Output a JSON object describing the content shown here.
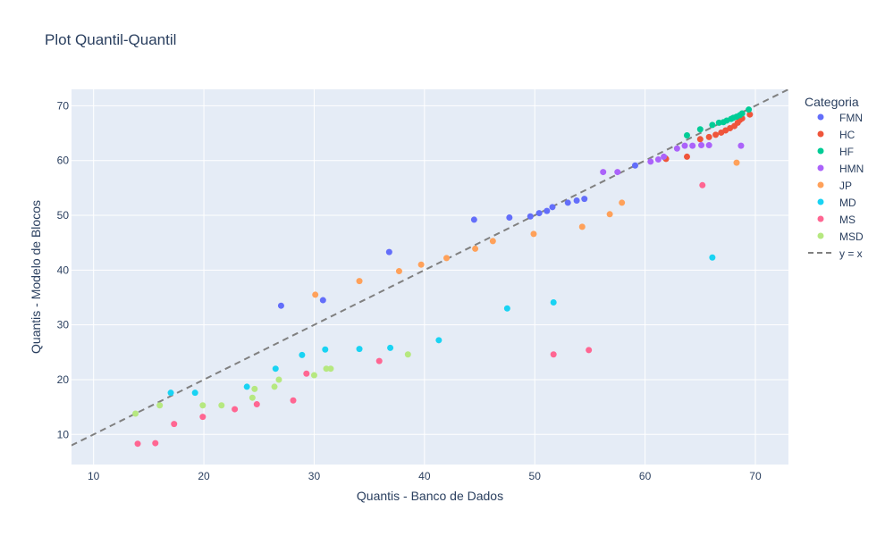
{
  "chart_data": {
    "type": "scatter",
    "title": "Plot Quantil-Quantil",
    "xlabel": "Quantis - Banco de Dados",
    "ylabel": "Quantis - Modelo de Blocos",
    "xlim": [
      8,
      73
    ],
    "ylim": [
      4.5,
      73
    ],
    "xticks": [
      10,
      20,
      30,
      40,
      50,
      60,
      70
    ],
    "yticks": [
      10,
      20,
      30,
      40,
      50,
      60,
      70
    ],
    "grid": true,
    "legend_title": "Categoria",
    "legend_position": "right",
    "plot_bg": "#e5ecf6",
    "reference_line": {
      "name": "y = x",
      "color": "#808080",
      "dash": true
    },
    "series": [
      {
        "name": "FMN",
        "color": "#636efa",
        "points": [
          [
            27,
            33.5
          ],
          [
            30.8,
            34.5
          ],
          [
            36.8,
            43.3
          ],
          [
            44.5,
            49.2
          ],
          [
            47.7,
            49.6
          ],
          [
            49.6,
            49.8
          ],
          [
            50.4,
            50.4
          ],
          [
            51.1,
            50.8
          ],
          [
            51.6,
            51.5
          ],
          [
            53,
            52.3
          ],
          [
            53.8,
            52.7
          ],
          [
            54.5,
            53
          ],
          [
            59.1,
            59.1
          ],
          [
            61.8,
            60.5
          ]
        ]
      },
      {
        "name": "HC",
        "color": "#ef553b",
        "points": [
          [
            61.9,
            60.3
          ],
          [
            63.8,
            60.7
          ],
          [
            65,
            63.9
          ],
          [
            65.8,
            64.3
          ],
          [
            66.4,
            64.7
          ],
          [
            66.9,
            65.1
          ],
          [
            67.3,
            65.5
          ],
          [
            67.7,
            65.9
          ],
          [
            68.1,
            66.3
          ],
          [
            68.4,
            66.9
          ],
          [
            68.6,
            67.4
          ],
          [
            68.8,
            67.7
          ],
          [
            69.5,
            68.4
          ]
        ]
      },
      {
        "name": "HF",
        "color": "#00cc96",
        "points": [
          [
            63.8,
            64.6
          ],
          [
            65,
            65.7
          ],
          [
            66.1,
            66.5
          ],
          [
            66.7,
            66.9
          ],
          [
            67.1,
            67
          ],
          [
            67.4,
            67.3
          ],
          [
            67.8,
            67.6
          ],
          [
            68,
            67.8
          ],
          [
            68.3,
            68
          ],
          [
            68.6,
            68.3
          ],
          [
            68.8,
            68.6
          ],
          [
            69.4,
            69.3
          ]
        ]
      },
      {
        "name": "HMN",
        "color": "#ab63fa",
        "points": [
          [
            56.2,
            57.9
          ],
          [
            57.5,
            57.9
          ],
          [
            60.5,
            59.8
          ],
          [
            61.2,
            60.2
          ],
          [
            61.7,
            60.7
          ],
          [
            62.9,
            62.2
          ],
          [
            63.6,
            62.7
          ],
          [
            64.3,
            62.7
          ],
          [
            65.1,
            62.8
          ],
          [
            65.8,
            62.8
          ],
          [
            68.7,
            62.7
          ]
        ]
      },
      {
        "name": "JP",
        "color": "#ffa15a",
        "points": [
          [
            30.1,
            35.5
          ],
          [
            34.1,
            38
          ],
          [
            37.7,
            39.8
          ],
          [
            39.7,
            41
          ],
          [
            42,
            42.2
          ],
          [
            44.6,
            43.9
          ],
          [
            46.2,
            45.3
          ],
          [
            49.9,
            46.6
          ],
          [
            54.3,
            47.9
          ],
          [
            56.8,
            50.2
          ],
          [
            57.9,
            52.3
          ],
          [
            68.3,
            59.6
          ]
        ]
      },
      {
        "name": "MD",
        "color": "#19d3f3",
        "points": [
          [
            17,
            17.6
          ],
          [
            19.2,
            17.6
          ],
          [
            23.9,
            18.7
          ],
          [
            26.5,
            22
          ],
          [
            28.9,
            24.5
          ],
          [
            31,
            25.5
          ],
          [
            34.1,
            25.6
          ],
          [
            36.9,
            25.8
          ],
          [
            41.3,
            27.2
          ],
          [
            47.5,
            33
          ],
          [
            51.7,
            34.1
          ],
          [
            66.1,
            42.3
          ]
        ]
      },
      {
        "name": "MS",
        "color": "#ff6692",
        "points": [
          [
            14,
            8.3
          ],
          [
            15.6,
            8.4
          ],
          [
            17.3,
            11.9
          ],
          [
            19.9,
            13.2
          ],
          [
            22.8,
            14.6
          ],
          [
            24.8,
            15.5
          ],
          [
            28.1,
            16.2
          ],
          [
            29.3,
            21.1
          ],
          [
            35.9,
            23.4
          ],
          [
            51.7,
            24.6
          ],
          [
            54.9,
            25.4
          ],
          [
            65.2,
            55.5
          ]
        ]
      },
      {
        "name": "MSD",
        "color": "#b6e880",
        "points": [
          [
            13.8,
            13.8
          ],
          [
            16,
            15.3
          ],
          [
            19.9,
            15.3
          ],
          [
            21.6,
            15.3
          ],
          [
            24.4,
            16.7
          ],
          [
            24.6,
            18.3
          ],
          [
            26.4,
            18.7
          ],
          [
            26.8,
            20
          ],
          [
            30,
            20.8
          ],
          [
            31.1,
            22
          ],
          [
            31.5,
            22
          ],
          [
            38.5,
            24.6
          ]
        ]
      }
    ]
  }
}
